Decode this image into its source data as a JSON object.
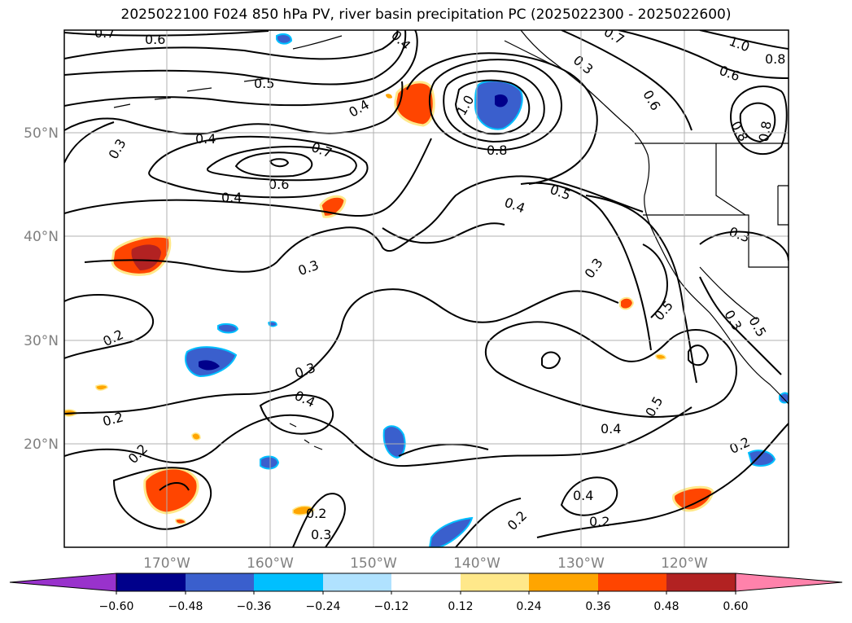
{
  "title": "2025022100 F024 850 hPa PV, river basin precipitation PC (2025022300 - 2025022600)",
  "lat_labels": [
    "50°N",
    "40°N",
    "30°N",
    "20°N"
  ],
  "lon_labels": [
    "170°W",
    "160°W",
    "150°W",
    "140°W",
    "130°W",
    "120°W"
  ],
  "contour_labels": [
    "0.7",
    "0.6",
    "0.5",
    "0.4",
    "0.3",
    "0.4",
    "0.7",
    "0.6",
    "0.4",
    "0.3",
    "0.2",
    "0.3",
    "0.4",
    "0.2",
    "0.2",
    "0.2",
    "0.3",
    "0.4",
    "1.0",
    "0.8",
    "0.5",
    "0.4",
    "0.3",
    "0.7",
    "0.6",
    "1.0",
    "0.8",
    "0.6",
    "0.8",
    "0.8",
    "0.3",
    "0.5",
    "0.5",
    "0.4",
    "0.4",
    "0.2",
    "0.2",
    "0.3",
    "0.2",
    "0.3",
    "0.5"
  ],
  "colorbar": {
    "ticks": [
      "−0.60",
      "−0.48",
      "−0.36",
      "−0.24",
      "−0.12",
      "0.12",
      "0.24",
      "0.36",
      "0.48",
      "0.60"
    ],
    "colors": [
      "#9932cc",
      "#00008b",
      "#3a5fcd",
      "#00bfff",
      "#b0e2ff",
      "#ffffff",
      "#ffe88a",
      "#ffa500",
      "#ff4500",
      "#b22222",
      "#ff82ab"
    ]
  },
  "colors": {
    "contour": "#000000",
    "coast": "#000000",
    "grid": "#b0b0b0",
    "axis_label": "#808080"
  }
}
